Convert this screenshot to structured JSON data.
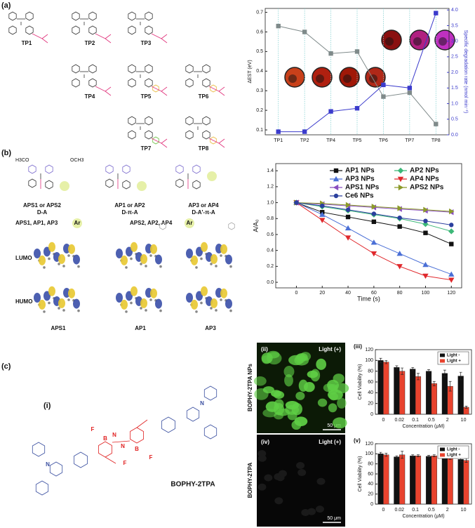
{
  "panel_labels": [
    "(a)",
    "(b)",
    "(c)"
  ],
  "sub_labels": {
    "i": "(i)",
    "ii": "(ii)",
    "iii": "(iii)",
    "iv": "(iv)",
    "v": "(v)"
  },
  "molecules_a": [
    "TP1",
    "TP2",
    "TP3",
    "TP4",
    "TP5",
    "TP6",
    "TP7",
    "TP8"
  ],
  "molecules_b": {
    "names": [
      "APS1 or APS2",
      "AP1 or AP2",
      "AP3 or AP4"
    ],
    "designs": [
      "D-A",
      "D-π-A",
      "D-A'-π-A"
    ],
    "groups": [
      "APS1, AP1, AP3",
      "APS2, AP2, AP4"
    ],
    "ar": "Ar",
    "methoxy": [
      "H3CO",
      "OCH3"
    ]
  },
  "orbitals": {
    "rows": [
      "LUMO",
      "HUMO"
    ],
    "columns": [
      "APS1",
      "AP1",
      "AP3"
    ]
  },
  "bophy": {
    "name": "BOPHY-2TPA",
    "atoms": [
      "F",
      "B",
      "N"
    ]
  },
  "microscopy": {
    "light": "Light (+)",
    "scale": "50 μm",
    "rows": [
      "BOPHY-2TPA NPs",
      "BOPHY-2TPA"
    ]
  },
  "chart_data": [
    {
      "type": "line",
      "categories": [
        "TP1",
        "TP2",
        "TP4",
        "TP5",
        "TP6",
        "TP7",
        "TP8"
      ],
      "ylabel": "ΔEST (eV)",
      "y2label": "Specific degradation rate (nmol min⁻¹)",
      "ylim": [
        0.075,
        0.72
      ],
      "yticks": [
        0.1,
        0.2,
        0.3,
        0.4,
        0.5,
        0.6,
        0.7
      ],
      "y2lim": [
        0,
        4.05
      ],
      "y2ticks": [
        {
          "value": 0,
          "label": "0.0"
        },
        0.5,
        {
          "value": 1,
          "label": "1.0"
        },
        1.5,
        {
          "value": 2,
          "label": "2.0"
        },
        2.5,
        {
          "value": 3,
          "label": "3.0"
        },
        3.5,
        {
          "value": 4,
          "label": "4.0"
        }
      ],
      "series": [
        {
          "color": "#7f8a8a",
          "values": [
            0.63,
            0.6,
            0.49,
            0.5,
            0.27,
            0.29,
            0.13
          ]
        },
        {
          "color": "#3b3bcc",
          "axis": "y2",
          "values": [
            0.1,
            0.1,
            0.75,
            0.85,
            1.6,
            1.5,
            3.9
          ]
        }
      ]
    },
    {
      "type": "line",
      "xlabel": "Time (s)",
      "ylabel": "A/A₀",
      "legend": "upper right",
      "x": [
        0,
        20,
        40,
        60,
        80,
        100,
        120
      ],
      "xlim": [
        -16,
        128
      ],
      "xticks": [
        0,
        20,
        40,
        60,
        80,
        100,
        120
      ],
      "ylim": [
        -0.07,
        1.49
      ],
      "yticks": [
        {
          "value": 0,
          "label": "0.0"
        },
        0.2,
        0.4,
        0.6,
        0.8,
        {
          "value": 1,
          "label": "1.0"
        },
        1.2,
        1.4
      ],
      "series": [
        {
          "name": "AP1 NPs",
          "color": "#111111",
          "marker": "square",
          "values": [
            1.0,
            0.88,
            0.82,
            0.76,
            0.7,
            0.62,
            0.48
          ]
        },
        {
          "name": "AP2 NPs",
          "color": "#3cb878",
          "marker": "diamond",
          "values": [
            1.0,
            0.95,
            0.9,
            0.85,
            0.8,
            0.73,
            0.64
          ]
        },
        {
          "name": "AP3 NPs",
          "color": "#4a6fd6",
          "marker": "up",
          "values": [
            1.0,
            0.85,
            0.68,
            0.5,
            0.36,
            0.22,
            0.1
          ]
        },
        {
          "name": "AP4 NPs",
          "color": "#e0282c",
          "marker": "down",
          "values": [
            1.0,
            0.78,
            0.56,
            0.36,
            0.2,
            0.08,
            0.03
          ]
        },
        {
          "name": "APS1 NPs",
          "color": "#8a4fc0",
          "marker": "left",
          "values": [
            1.0,
            0.98,
            0.96,
            0.94,
            0.92,
            0.9,
            0.88
          ]
        },
        {
          "name": "APS2 NPs",
          "color": "#8c9a2a",
          "marker": "right",
          "values": [
            1.0,
            0.99,
            0.97,
            0.95,
            0.93,
            0.91,
            0.89
          ]
        },
        {
          "name": "Ce6 NPs",
          "color": "#2b3f9e",
          "marker": "circle",
          "values": [
            1.0,
            0.96,
            0.91,
            0.86,
            0.81,
            0.77,
            0.72
          ]
        }
      ]
    },
    {
      "type": "bar",
      "xlabel": "Concentration (μM)",
      "ylabel": "Cell Viability (%)",
      "legend": "upper right",
      "categories": [
        "0",
        "0.02",
        "0.1",
        "0.5",
        "2",
        "10"
      ],
      "ylim": [
        0,
        120
      ],
      "yticks": [
        0,
        20,
        40,
        60,
        80,
        100,
        120
      ],
      "series": [
        {
          "name": "Light -",
          "color": "#111111",
          "values": [
            100,
            87,
            84,
            80,
            76,
            71
          ],
          "errors": [
            4,
            3,
            3,
            3,
            6,
            7
          ]
        },
        {
          "name": "Light +",
          "color": "#e8432e",
          "values": [
            97,
            80,
            70,
            57,
            52,
            13
          ],
          "errors": [
            3,
            6,
            6,
            4,
            9,
            2
          ]
        }
      ]
    },
    {
      "type": "bar",
      "xlabel": "Concentration (μM)",
      "ylabel": "Cell Viability (%)",
      "legend": "upper right",
      "categories": [
        "0",
        "0.02",
        "0.1",
        "0.5",
        "2",
        "10"
      ],
      "ylim": [
        0,
        120
      ],
      "yticks": [
        0,
        20,
        40,
        60,
        80,
        100,
        120
      ],
      "series": [
        {
          "name": "Light -",
          "color": "#111111",
          "values": [
            100,
            94,
            96,
            95,
            93,
            89
          ],
          "errors": [
            3,
            2,
            2,
            2,
            3,
            4
          ]
        },
        {
          "name": "Light +",
          "color": "#e8432e",
          "values": [
            98,
            98,
            96,
            96,
            92,
            87
          ],
          "errors": [
            3,
            7,
            2,
            2,
            3,
            4
          ]
        }
      ]
    }
  ]
}
